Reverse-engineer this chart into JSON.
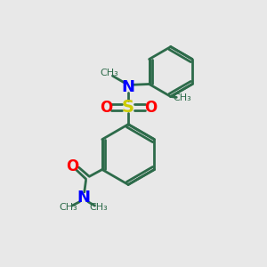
{
  "bg_color": "#e8e8e8",
  "bond_color": "#2d6b4a",
  "N_color": "#0000ff",
  "O_color": "#ff0000",
  "S_color": "#cccc00",
  "line_width": 2.0,
  "figsize": [
    3.0,
    3.0
  ],
  "dpi": 100,
  "xlim": [
    0,
    10
  ],
  "ylim": [
    0,
    10
  ]
}
